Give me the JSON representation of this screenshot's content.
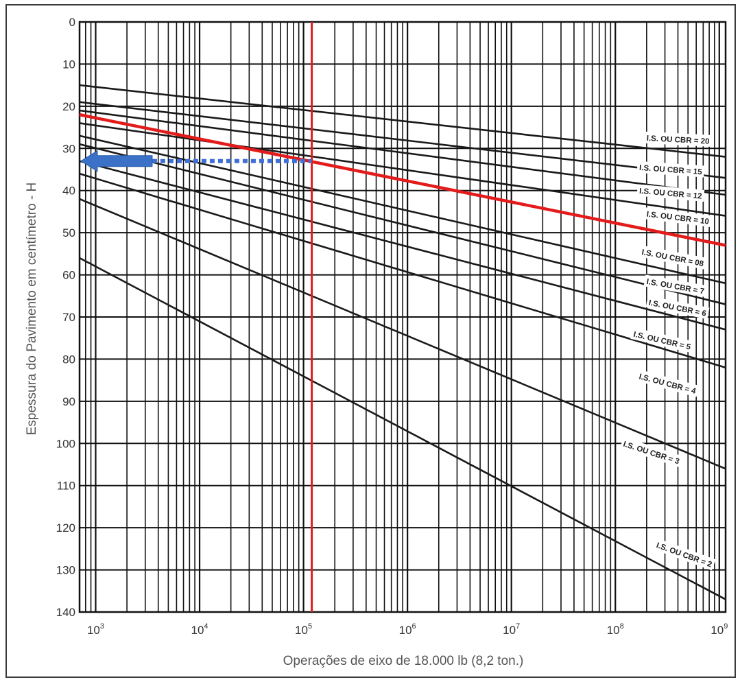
{
  "chart_data": {
    "type": "line",
    "title": "",
    "xlabel": "Operações de eixo de 18.000 lb (8,2 ton.)",
    "ylabel": "Espessura do Pavimento em centímetro - H",
    "xscale": "log",
    "xlim": [
      700,
      1150000000
    ],
    "ylim": [
      140,
      0
    ],
    "yticks": [
      "0",
      "10",
      "20",
      "30",
      "40",
      "50",
      "60",
      "70",
      "80",
      "90",
      "100",
      "110",
      "120",
      "130",
      "140"
    ],
    "xticks": [
      {
        "value": 1000,
        "base": "10",
        "exp": "3"
      },
      {
        "value": 10000,
        "base": "10",
        "exp": "4"
      },
      {
        "value": 100000,
        "base": "10",
        "exp": "5"
      },
      {
        "value": 1000000,
        "base": "10",
        "exp": "6"
      },
      {
        "value": 10000000,
        "base": "10",
        "exp": "7"
      },
      {
        "value": 100000000,
        "base": "10",
        "exp": "8"
      },
      {
        "value": 1000000000,
        "base": "10",
        "exp": "9"
      }
    ],
    "grid": true,
    "series": [
      {
        "name": "I.S. OU CBR = 20",
        "x": [
          700,
          1150000000
        ],
        "y": [
          15,
          32
        ],
        "color": "#1a1a1a"
      },
      {
        "name": "I.S. OU CBR = 15",
        "x": [
          700,
          1150000000
        ],
        "y": [
          19,
          37
        ],
        "color": "#1a1a1a"
      },
      {
        "name": "I.S. OU CBR = 12",
        "x": [
          700,
          1150000000
        ],
        "y": [
          21,
          41
        ],
        "color": "#1a1a1a"
      },
      {
        "name": "I.S. OU CBR = 10",
        "x": [
          700,
          1150000000
        ],
        "y": [
          24,
          46
        ],
        "color": "#1a1a1a"
      },
      {
        "name": "I.S. OU CBR = 08",
        "x": [
          700,
          1150000000
        ],
        "y": [
          22,
          53
        ],
        "color": "#e31b1b"
      },
      {
        "name": "I.S. OU CBR = 7",
        "x": [
          700,
          1150000000
        ],
        "y": [
          27,
          62
        ],
        "color": "#1a1a1a"
      },
      {
        "name": "I.S. OU CBR = 6",
        "x": [
          700,
          1150000000
        ],
        "y": [
          29,
          67
        ],
        "color": "#1a1a1a"
      },
      {
        "name": "I.S. OU CBR = 5",
        "x": [
          700,
          1150000000
        ],
        "y": [
          33,
          73
        ],
        "color": "#1a1a1a"
      },
      {
        "name": "I.S. OU CBR = 4",
        "x": [
          700,
          1150000000
        ],
        "y": [
          36,
          82
        ],
        "color": "#1a1a1a"
      },
      {
        "name": "I.S. OU CBR = 3",
        "x": [
          700,
          1150000000
        ],
        "y": [
          42,
          106
        ],
        "color": "#1a1a1a"
      },
      {
        "name": "I.S. OU CBR = 2",
        "x": [
          700,
          1150000000
        ],
        "y": [
          56,
          137
        ],
        "color": "#1a1a1a"
      }
    ],
    "curve_labels": [
      {
        "text": "I.S. OU CBR = 20",
        "x": 200000000,
        "y": 27.5,
        "angle": 3
      },
      {
        "text": "I.S. OU CBR = 15",
        "x": 170000000,
        "y": 34.5,
        "angle": 4
      },
      {
        "text": "I.S. OU CBR = 12",
        "x": 170000000,
        "y": 40,
        "angle": 5
      },
      {
        "text": "I.S. OU CBR = 10",
        "x": 200000000,
        "y": 45.5,
        "angle": 7
      },
      {
        "text": "I.S. OU CBR = 08",
        "x": 180000000,
        "y": 54.5,
        "angle": 11
      },
      {
        "text": "I.S. OU CBR = 7",
        "x": 200000000,
        "y": 61.5,
        "angle": 10
      },
      {
        "text": "I.S. OU CBR = 6",
        "x": 210000000,
        "y": 66.5,
        "angle": 11
      },
      {
        "text": "I.S. OU CBR = 5",
        "x": 150000000,
        "y": 74,
        "angle": 13
      },
      {
        "text": "I.S. OU CBR = 4",
        "x": 170000000,
        "y": 84,
        "angle": 15
      },
      {
        "text": "I.S. OU CBR = 3",
        "x": 120000000,
        "y": 100,
        "angle": 18
      },
      {
        "text": "I.S. OU CBR = 2",
        "x": 250000000,
        "y": 124,
        "angle": 20
      }
    ],
    "annotations": {
      "vertical_line": {
        "x": 120000,
        "color": "#e31b1b"
      },
      "dotted_line": {
        "x_from": 3500,
        "x_to": 120000,
        "y": 33,
        "color": "#3e6fd6"
      },
      "arrow": {
        "x_from": 3500,
        "x_to": 700,
        "y": 33,
        "color": "#3b72c8"
      }
    }
  }
}
